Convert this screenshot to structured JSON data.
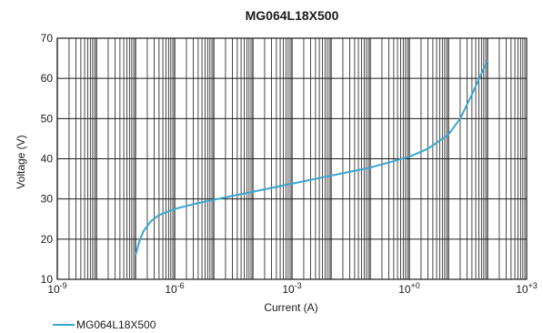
{
  "chart_data": {
    "type": "line",
    "title": "MG064L18X500",
    "xlabel": "Current (A)",
    "ylabel": "Voltage (V)",
    "xscale": "log",
    "xlim": [
      1e-09,
      1000
    ],
    "ylim": [
      10,
      70
    ],
    "yticks": [
      10,
      20,
      30,
      40,
      50,
      60,
      70
    ],
    "xticks": [
      {
        "value": 1e-09,
        "base": "10",
        "exp": "-9"
      },
      {
        "value": 1e-06,
        "base": "10",
        "exp": "-6"
      },
      {
        "value": 0.001,
        "base": "10",
        "exp": "-3"
      },
      {
        "value": 1,
        "base": "10",
        "exp": "+0"
      },
      {
        "value": 1000,
        "base": "10",
        "exp": "+3"
      }
    ],
    "grid": true,
    "legend_position": "bottom-left",
    "series": [
      {
        "name": "MG064L18X500",
        "color": "#3aa6cf",
        "points": [
          [
            1e-07,
            16
          ],
          [
            1.26e-07,
            19.5
          ],
          [
            1.6e-07,
            22
          ],
          [
            2.5e-07,
            24.5
          ],
          [
            4e-07,
            26
          ],
          [
            1e-06,
            27.5
          ],
          [
            3e-06,
            28.7
          ],
          [
            1e-05,
            29.8
          ],
          [
            0.0001,
            31.8
          ],
          [
            0.001,
            33.8
          ],
          [
            0.01,
            35.8
          ],
          [
            0.1,
            37.8
          ],
          [
            1,
            40.5
          ],
          [
            3,
            42.5
          ],
          [
            10,
            46
          ],
          [
            20,
            50
          ],
          [
            40,
            56
          ],
          [
            100,
            64.5
          ]
        ]
      }
    ]
  }
}
